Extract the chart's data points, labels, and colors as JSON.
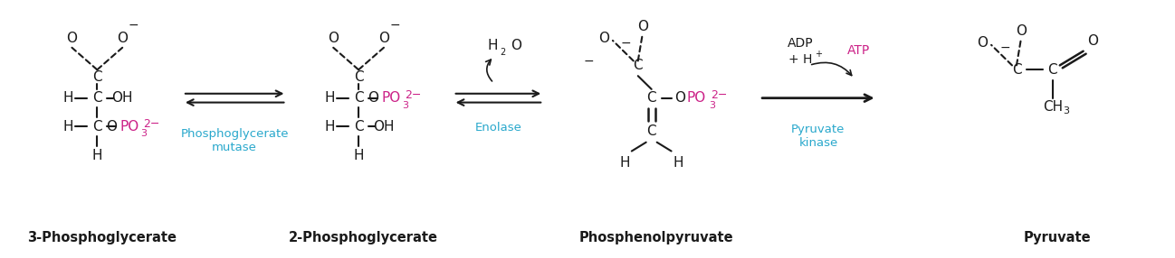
{
  "fig_width": 12.98,
  "fig_height": 2.86,
  "dpi": 100,
  "bg_color": "#ffffff",
  "black": "#1a1a1a",
  "cyan": "#29a8cc",
  "magenta": "#cc2288",
  "label_3pg": "3-Phosphoglycerate",
  "label_2pg": "2-Phosphoglycerate",
  "label_pep": "Phosphenolpyruvate",
  "label_pyr": "Pyruvate",
  "label_pm": "Phosphoglycerate\nmutase",
  "label_en": "Enolase",
  "label_pk": "Pyruvate\nkinase"
}
